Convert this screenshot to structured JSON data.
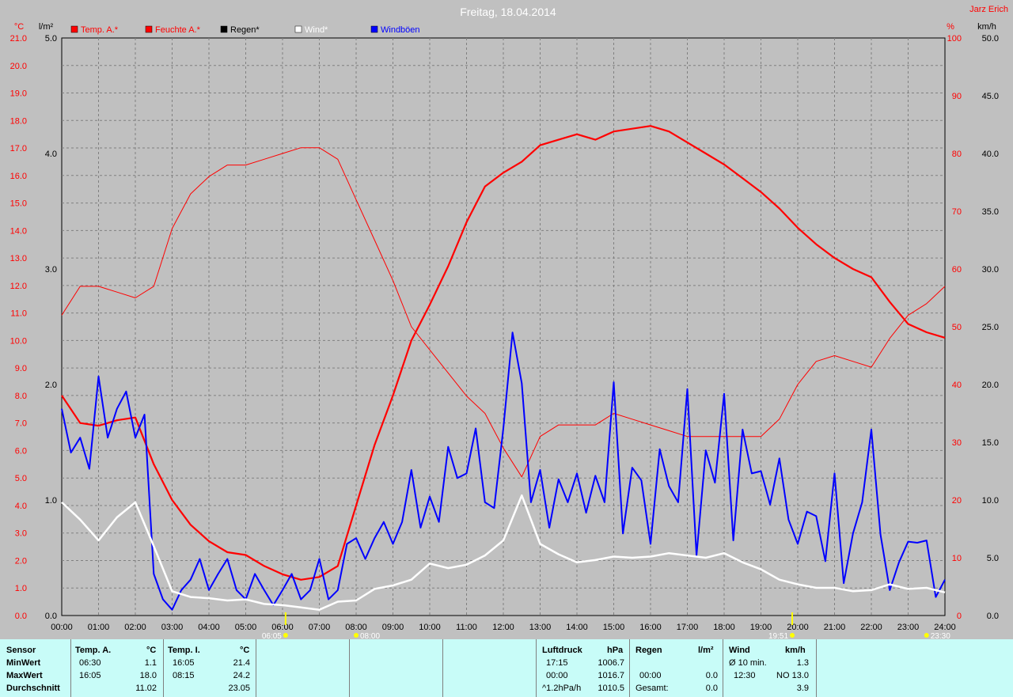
{
  "title": "Freitag, 18.04.2014",
  "author": "Jarz Erich",
  "units": {
    "temp": "°C",
    "rain": "l/m²",
    "humidity": "%",
    "wind": "km/h"
  },
  "legend": [
    {
      "label": "Temp. A.*",
      "color": "#ff0000"
    },
    {
      "label": "Feuchte A.*",
      "color": "#ff0000"
    },
    {
      "label": "Regen*",
      "color": "#000000"
    },
    {
      "label": "Wind*",
      "color": "#ffffff"
    },
    {
      "label": "Windböen",
      "color": "#0000ff"
    }
  ],
  "sun_markers": {
    "sunrise": "06:05",
    "sunset": "19:51",
    "moon_set": "08:00",
    "moon_rise": "23:30"
  },
  "chart_data": {
    "type": "line",
    "x_label": "time",
    "x_ticks": [
      "00:00",
      "01:00",
      "02:00",
      "03:00",
      "04:00",
      "05:00",
      "06:00",
      "07:00",
      "08:00",
      "09:00",
      "10:00",
      "11:00",
      "12:00",
      "13:00",
      "14:00",
      "15:00",
      "16:00",
      "17:00",
      "18:00",
      "19:00",
      "20:00",
      "21:00",
      "22:00",
      "23:00",
      "24:00"
    ],
    "axes": {
      "temp": {
        "ylim": [
          0,
          21
        ],
        "ticks": [
          "0.0",
          "1.0",
          "2.0",
          "3.0",
          "4.0",
          "5.0",
          "6.0",
          "7.0",
          "8.0",
          "9.0",
          "10.0",
          "11.0",
          "12.0",
          "13.0",
          "14.0",
          "15.0",
          "16.0",
          "17.0",
          "18.0",
          "19.0",
          "20.0",
          "21.0"
        ]
      },
      "rain": {
        "ylim": [
          0,
          5
        ],
        "ticks": [
          "0.0",
          "1.0",
          "2.0",
          "3.0",
          "4.0",
          "5.0"
        ]
      },
      "humidity": {
        "ylim": [
          0,
          100
        ],
        "ticks": [
          "0",
          "10",
          "20",
          "30",
          "40",
          "50",
          "60",
          "70",
          "80",
          "90",
          "100"
        ]
      },
      "wind": {
        "ylim": [
          0,
          50
        ],
        "ticks": [
          "0.0",
          "5.0",
          "10.0",
          "15.0",
          "20.0",
          "25.0",
          "30.0",
          "35.0",
          "40.0",
          "45.0",
          "50.0"
        ]
      }
    },
    "grid": true,
    "series": [
      {
        "name": "Temp. A.*",
        "axis": "temp",
        "color": "#ff0000",
        "width": 2.2,
        "x": [
          0,
          0.5,
          1,
          1.5,
          2,
          2.5,
          3,
          3.5,
          4,
          4.5,
          5,
          5.5,
          6,
          6.5,
          7,
          7.5,
          8,
          8.5,
          9,
          9.5,
          10,
          10.5,
          11,
          11.5,
          12,
          12.5,
          13,
          13.5,
          14,
          14.5,
          15,
          15.5,
          16,
          16.5,
          17,
          17.5,
          18,
          18.5,
          19,
          19.5,
          20,
          20.5,
          21,
          21.5,
          22,
          22.5,
          23,
          23.5,
          24
        ],
        "y": [
          8.0,
          7.0,
          6.9,
          7.1,
          7.2,
          5.5,
          4.2,
          3.3,
          2.7,
          2.3,
          2.2,
          1.8,
          1.5,
          1.3,
          1.4,
          1.8,
          4.0,
          6.2,
          8.0,
          10.0,
          11.3,
          12.7,
          14.3,
          15.6,
          16.1,
          16.5,
          17.1,
          17.3,
          17.5,
          17.3,
          17.6,
          17.7,
          17.8,
          17.6,
          17.2,
          16.8,
          16.4,
          15.9,
          15.4,
          14.8,
          14.1,
          13.5,
          13.0,
          12.6,
          12.3,
          11.4,
          10.6,
          10.3,
          10.1
        ]
      },
      {
        "name": "Feuchte A.*",
        "axis": "humidity",
        "color": "#ff0000",
        "width": 1,
        "x": [
          0,
          0.5,
          1,
          1.5,
          2,
          2.5,
          3,
          3.5,
          4,
          4.5,
          5,
          5.5,
          6,
          6.5,
          7,
          7.5,
          8,
          8.5,
          9,
          9.5,
          10,
          10.5,
          11,
          11.5,
          12,
          12.5,
          13,
          13.5,
          14,
          14.5,
          15,
          15.5,
          16,
          16.5,
          17,
          17.5,
          18,
          18.5,
          19,
          19.5,
          20,
          20.5,
          21,
          21.5,
          22,
          22.5,
          23,
          23.5,
          24
        ],
        "y": [
          52,
          57,
          57,
          56,
          55,
          57,
          67,
          73,
          76,
          78,
          78,
          79,
          80,
          81,
          81,
          79,
          72,
          65,
          58,
          50,
          46,
          42,
          38,
          35,
          29,
          24,
          31,
          33,
          33,
          33,
          35,
          34,
          33,
          32,
          31,
          31,
          31,
          31,
          31,
          34,
          40,
          44,
          45,
          44,
          43,
          48,
          52,
          54,
          57
        ]
      },
      {
        "name": "Windböen",
        "axis": "wind",
        "color": "#0000ff",
        "width": 2,
        "x": [
          0,
          0.25,
          0.5,
          0.75,
          1,
          1.25,
          1.5,
          1.75,
          2,
          2.25,
          2.5,
          2.75,
          3,
          3.25,
          3.5,
          3.75,
          4,
          4.25,
          4.5,
          4.75,
          5,
          5.25,
          5.5,
          5.75,
          6,
          6.25,
          6.5,
          6.75,
          7,
          7.25,
          7.5,
          7.75,
          8,
          8.25,
          8.5,
          8.75,
          9,
          9.25,
          9.5,
          9.75,
          10,
          10.25,
          10.5,
          10.75,
          11,
          11.25,
          11.5,
          11.75,
          12,
          12.25,
          12.5,
          12.75,
          13,
          13.25,
          13.5,
          13.75,
          14,
          14.25,
          14.5,
          14.75,
          15,
          15.25,
          15.5,
          15.75,
          16,
          16.25,
          16.5,
          16.75,
          17,
          17.25,
          17.5,
          17.75,
          18,
          18.25,
          18.5,
          18.75,
          19,
          19.25,
          19.5,
          19.75,
          20,
          20.25,
          20.5,
          20.75,
          21,
          21.25,
          21.5,
          21.75,
          22,
          22.25,
          22.5,
          22.75,
          23,
          23.25,
          23.5,
          23.75,
          24
        ],
        "y": [
          17.9,
          14.1,
          15.4,
          12.7,
          20.7,
          15.4,
          17.9,
          19.4,
          15.4,
          17.4,
          3.6,
          1.4,
          0.5,
          2.2,
          3.1,
          4.9,
          2.2,
          3.6,
          4.9,
          2.2,
          1.4,
          3.6,
          2.2,
          0.9,
          2.2,
          3.6,
          1.4,
          2.2,
          4.9,
          1.4,
          2.2,
          6.2,
          6.7,
          4.9,
          6.7,
          8.1,
          6.2,
          8.1,
          12.6,
          7.6,
          10.3,
          8.1,
          14.6,
          11.9,
          12.3,
          16.2,
          9.8,
          9.3,
          16.2,
          24.5,
          20.1,
          9.8,
          12.6,
          7.6,
          11.8,
          9.8,
          12.3,
          8.9,
          12.1,
          9.8,
          20.2,
          7.1,
          12.8,
          11.7,
          6.2,
          14.4,
          11.2,
          9.8,
          19.6,
          5.2,
          14.3,
          11.5,
          19.2,
          6.5,
          16.1,
          12.3,
          12.5,
          9.6,
          13.6,
          8.3,
          6.2,
          9.0,
          8.6,
          4.7,
          12.3,
          2.8,
          7.1,
          9.8,
          16.1,
          7.0,
          2.2,
          4.6,
          6.4,
          6.3,
          6.5,
          1.6,
          3.1
        ]
      },
      {
        "name": "Wind*",
        "axis": "wind",
        "color": "#ffffff",
        "width": 2.5,
        "x": [
          0,
          0.5,
          1,
          1.5,
          2,
          2.5,
          3,
          3.5,
          4,
          4.5,
          5,
          5.5,
          6,
          6.5,
          7,
          7.5,
          8,
          8.5,
          9,
          9.5,
          10,
          10.5,
          11,
          11.5,
          12,
          12.5,
          13,
          13.5,
          14,
          14.5,
          15,
          15.5,
          16,
          16.5,
          17,
          17.5,
          18,
          18.5,
          19,
          19.5,
          20,
          20.5,
          21,
          21.5,
          22,
          22.5,
          23,
          23.5,
          24
        ],
        "y": [
          9.8,
          8.3,
          6.5,
          8.5,
          9.8,
          6.0,
          2.1,
          1.6,
          1.5,
          1.3,
          1.4,
          1.0,
          0.9,
          0.7,
          0.5,
          1.2,
          1.3,
          2.3,
          2.6,
          3.1,
          4.5,
          4.1,
          4.4,
          5.2,
          6.5,
          10.4,
          6.2,
          5.3,
          4.6,
          4.8,
          5.1,
          5.0,
          5.1,
          5.4,
          5.2,
          5.0,
          5.4,
          4.6,
          4.0,
          3.1,
          2.7,
          2.4,
          2.4,
          2.1,
          2.2,
          2.7,
          2.3,
          2.4,
          2.0
        ]
      },
      {
        "name": "Regen*",
        "axis": "rain",
        "color": "#000000",
        "width": 1,
        "x": [
          0,
          24
        ],
        "y": [
          0,
          0
        ]
      }
    ]
  },
  "table": {
    "sensor_header": "Sensor",
    "rows": [
      "MinWert",
      "MaxWert",
      "Durchschnitt"
    ],
    "temp_a": {
      "header": "Temp. A.",
      "unit": "°C",
      "min_time": "06:30",
      "min_val": "1.1",
      "max_time": "16:05",
      "max_val": "18.0",
      "avg": "11.02"
    },
    "temp_i": {
      "header": "Temp. I.",
      "unit": "°C",
      "min_time": "16:05",
      "min_val": "21.4",
      "max_time": "08:15",
      "max_val": "24.2",
      "avg": "23.05"
    },
    "pressure": {
      "header": "Luftdruck",
      "unit": "hPa",
      "min_time": "17:15",
      "min_val": "1006.7",
      "max_time": "00:00",
      "max_val": "1016.7",
      "trend": "^1.2hPa/h",
      "avg": "1010.5"
    },
    "rain": {
      "header": "Regen",
      "unit": "l/m²",
      "min_time": "",
      "min_val": "",
      "max_time": "00:00",
      "max_val": "0.0",
      "total_label": "Gesamt:",
      "total": "0.0"
    },
    "wind": {
      "header": "Wind",
      "unit": "km/h",
      "avg10_label": "Ø 10 min.",
      "avg10": "1.3",
      "max_time": "12:30",
      "max_val": "NO 13.0",
      "avg": "3.9"
    }
  }
}
